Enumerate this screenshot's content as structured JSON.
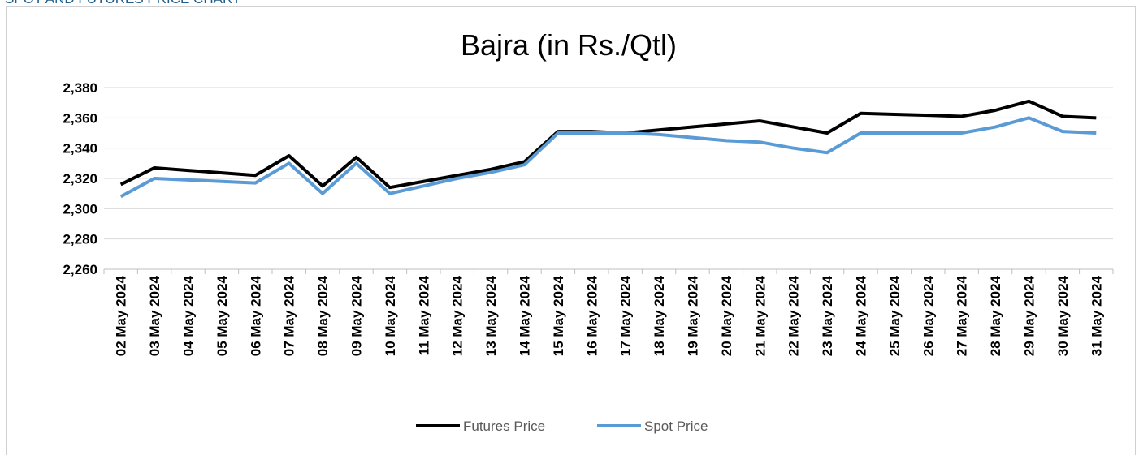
{
  "header": "SPOT AND FUTURES PRICE CHART",
  "chart_data": {
    "type": "line",
    "title": "Bajra (in Rs./Qtl)",
    "categories": [
      "02 May 2024",
      "03 May 2024",
      "04 May 2024",
      "05 May 2024",
      "06 May 2024",
      "07 May 2024",
      "08 May 2024",
      "09 May 2024",
      "10 May 2024",
      "11 May 2024",
      "12 May 2024",
      "13 May 2024",
      "14 May 2024",
      "15 May 2024",
      "16 May 2024",
      "17 May 2024",
      "18 May 2024",
      "19 May 2024",
      "20 May 2024",
      "21 May 2024",
      "22 May 2024",
      "23 May 2024",
      "24 May 2024",
      "25 May 2024",
      "26 May 2024",
      "27 May 2024",
      "28 May 2024",
      "29 May 2024",
      "30 May 2024",
      "31 May 2024"
    ],
    "series": [
      {
        "name": "Futures Price",
        "color": "#000000",
        "values": [
          2316,
          2327,
          2325.3,
          2323.7,
          2322,
          2335,
          2315,
          2334,
          2314,
          2318,
          2322,
          2326,
          2331,
          2351,
          2351,
          2350,
          2352,
          2354,
          2356,
          2358,
          2354,
          2350,
          2363,
          2362.3,
          2361.7,
          2361,
          2365,
          2371,
          2361,
          2360
        ]
      },
      {
        "name": "Spot Price",
        "color": "#5b9bd5",
        "values": [
          2308,
          2320,
          2319,
          2318,
          2317,
          2330,
          2310,
          2330,
          2310,
          2315,
          2320,
          2324,
          2329,
          2350,
          2350,
          2350,
          2349,
          2347,
          2345,
          2344,
          2340,
          2337,
          2350,
          2350,
          2350,
          2350,
          2354,
          2360,
          2351,
          2350
        ]
      }
    ],
    "ylim": [
      2260,
      2380
    ],
    "yticks": [
      {
        "value": 2260,
        "label": "2,260"
      },
      {
        "value": 2280,
        "label": "2,280"
      },
      {
        "value": 2300,
        "label": "2,300"
      },
      {
        "value": 2320,
        "label": "2,320"
      },
      {
        "value": 2340,
        "label": "2,340"
      },
      {
        "value": 2360,
        "label": "2,360"
      },
      {
        "value": 2380,
        "label": "2,380"
      }
    ],
    "grid": true,
    "legend": "bottom"
  }
}
